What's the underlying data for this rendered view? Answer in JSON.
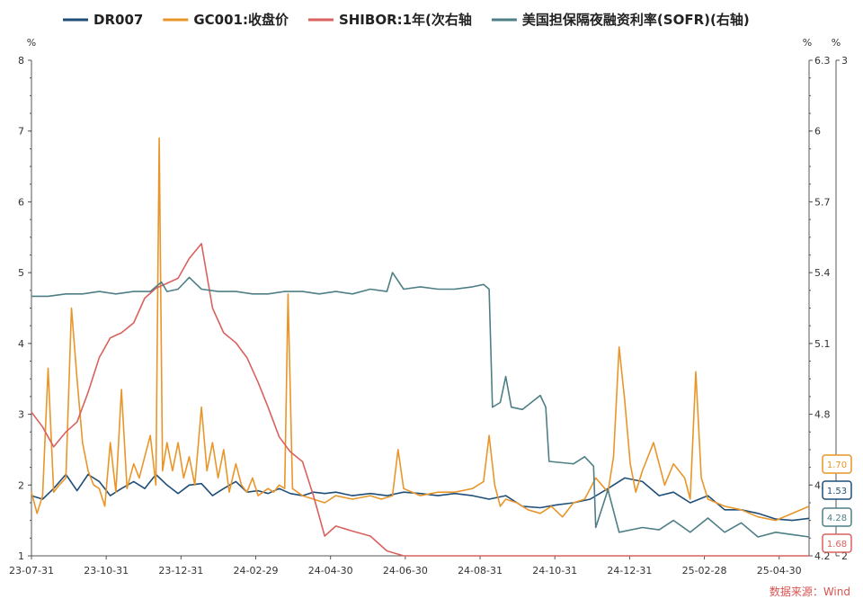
{
  "chart_data": {
    "type": "line",
    "title": "",
    "source_label": "数据来源：Wind",
    "legend_position": "top",
    "grid": false,
    "colors": {
      "DR007": "#1f4e79",
      "GC001": "#e8962a",
      "SHIBOR": "#d9625e",
      "SOFR": "#4e7f86"
    },
    "x_ticks": [
      "23-07-31",
      "23-10-31",
      "23-12-31",
      "24-02-29",
      "24-04-30",
      "24-06-30",
      "24-08-31",
      "24-10-31",
      "24-12-31",
      "25-02-28",
      "25-04-30"
    ],
    "left_axis": {
      "unit": "%",
      "min": 1,
      "max": 8,
      "ticks": [
        "1",
        "2",
        "3",
        "4",
        "5",
        "6",
        "7",
        "8"
      ]
    },
    "right_axis_1": {
      "unit": "%",
      "min": 4.2,
      "max": 6.3,
      "ticks": [
        "4.2",
        "4.5",
        "4.8",
        "5.1",
        "5.4",
        "5.7",
        "6",
        "6.3"
      ]
    },
    "right_axis_2": {
      "unit": "%",
      "min": 2,
      "max": 3,
      "ticks": [
        "2",
        "3"
      ]
    },
    "series": [
      {
        "name": "DR007",
        "key": "DR007",
        "axis": "left",
        "end_value": "1.53",
        "points": [
          [
            "2023-07-31",
            1.85
          ],
          [
            "2023-08-10",
            1.8
          ],
          [
            "2023-08-20",
            1.95
          ],
          [
            "2023-08-31",
            2.15
          ],
          [
            "2023-09-10",
            1.92
          ],
          [
            "2023-09-20",
            2.15
          ],
          [
            "2023-09-30",
            2.05
          ],
          [
            "2023-10-10",
            1.85
          ],
          [
            "2023-10-20",
            1.95
          ],
          [
            "2023-10-31",
            2.05
          ],
          [
            "2023-11-10",
            1.95
          ],
          [
            "2023-11-20",
            2.15
          ],
          [
            "2023-11-30",
            2.0
          ],
          [
            "2023-12-10",
            1.88
          ],
          [
            "2023-12-20",
            2.0
          ],
          [
            "2023-12-31",
            2.02
          ],
          [
            "2024-01-10",
            1.85
          ],
          [
            "2024-01-20",
            1.95
          ],
          [
            "2024-01-31",
            2.05
          ],
          [
            "2024-02-10",
            1.9
          ],
          [
            "2024-02-20",
            1.92
          ],
          [
            "2024-02-29",
            1.88
          ],
          [
            "2024-03-10",
            1.95
          ],
          [
            "2024-03-20",
            1.88
          ],
          [
            "2024-03-31",
            1.85
          ],
          [
            "2024-04-10",
            1.9
          ],
          [
            "2024-04-20",
            1.88
          ],
          [
            "2024-04-30",
            1.9
          ],
          [
            "2024-05-15",
            1.85
          ],
          [
            "2024-05-31",
            1.88
          ],
          [
            "2024-06-15",
            1.85
          ],
          [
            "2024-06-30",
            1.9
          ],
          [
            "2024-07-15",
            1.88
          ],
          [
            "2024-07-31",
            1.85
          ],
          [
            "2024-08-15",
            1.88
          ],
          [
            "2024-08-31",
            1.85
          ],
          [
            "2024-09-15",
            1.8
          ],
          [
            "2024-09-30",
            1.85
          ],
          [
            "2024-10-15",
            1.7
          ],
          [
            "2024-10-31",
            1.68
          ],
          [
            "2024-11-15",
            1.72
          ],
          [
            "2024-11-30",
            1.75
          ],
          [
            "2024-12-15",
            1.8
          ],
          [
            "2024-12-31",
            1.95
          ],
          [
            "2025-01-15",
            2.1
          ],
          [
            "2025-01-31",
            2.05
          ],
          [
            "2025-02-15",
            1.85
          ],
          [
            "2025-02-28",
            1.9
          ],
          [
            "2025-03-15",
            1.75
          ],
          [
            "2025-03-31",
            1.85
          ],
          [
            "2025-04-15",
            1.65
          ],
          [
            "2025-04-30",
            1.65
          ],
          [
            "2025-05-15",
            1.6
          ],
          [
            "2025-05-31",
            1.52
          ],
          [
            "2025-06-15",
            1.5
          ],
          [
            "2025-06-30",
            1.53
          ]
        ]
      },
      {
        "name": "GC001:收盘价",
        "key": "GC001",
        "axis": "left",
        "end_value": "1.70",
        "points": [
          [
            "2023-07-31",
            1.9
          ],
          [
            "2023-08-05",
            1.6
          ],
          [
            "2023-08-10",
            1.85
          ],
          [
            "2023-08-15",
            3.65
          ],
          [
            "2023-08-20",
            1.9
          ],
          [
            "2023-08-25",
            2.0
          ],
          [
            "2023-08-31",
            2.1
          ],
          [
            "2023-09-05",
            4.5
          ],
          [
            "2023-09-10",
            3.5
          ],
          [
            "2023-09-15",
            2.6
          ],
          [
            "2023-09-20",
            2.2
          ],
          [
            "2023-09-25",
            2.0
          ],
          [
            "2023-09-30",
            1.95
          ],
          [
            "2023-10-05",
            1.7
          ],
          [
            "2023-10-10",
            2.6
          ],
          [
            "2023-10-15",
            1.9
          ],
          [
            "2023-10-20",
            3.35
          ],
          [
            "2023-10-25",
            1.95
          ],
          [
            "2023-10-31",
            2.3
          ],
          [
            "2023-11-05",
            2.1
          ],
          [
            "2023-11-10",
            2.4
          ],
          [
            "2023-11-15",
            2.7
          ],
          [
            "2023-11-20",
            2.0
          ],
          [
            "2023-11-23",
            6.9
          ],
          [
            "2023-11-26",
            2.2
          ],
          [
            "2023-11-30",
            2.6
          ],
          [
            "2023-12-05",
            2.2
          ],
          [
            "2023-12-10",
            2.6
          ],
          [
            "2023-12-15",
            2.1
          ],
          [
            "2023-12-20",
            2.4
          ],
          [
            "2023-12-25",
            2.0
          ],
          [
            "2023-12-31",
            3.1
          ],
          [
            "2024-01-05",
            2.2
          ],
          [
            "2024-01-10",
            2.6
          ],
          [
            "2024-01-15",
            2.1
          ],
          [
            "2024-01-20",
            2.5
          ],
          [
            "2024-01-25",
            1.9
          ],
          [
            "2024-01-31",
            2.3
          ],
          [
            "2024-02-05",
            2.0
          ],
          [
            "2024-02-10",
            1.9
          ],
          [
            "2024-02-15",
            2.1
          ],
          [
            "2024-02-20",
            1.85
          ],
          [
            "2024-02-29",
            1.95
          ],
          [
            "2024-03-05",
            1.9
          ],
          [
            "2024-03-10",
            2.0
          ],
          [
            "2024-03-15",
            1.95
          ],
          [
            "2024-03-18",
            4.7
          ],
          [
            "2024-03-22",
            1.95
          ],
          [
            "2024-03-31",
            1.85
          ],
          [
            "2024-04-10",
            1.8
          ],
          [
            "2024-04-20",
            1.75
          ],
          [
            "2024-04-30",
            1.85
          ],
          [
            "2024-05-15",
            1.8
          ],
          [
            "2024-05-31",
            1.85
          ],
          [
            "2024-06-10",
            1.8
          ],
          [
            "2024-06-20",
            1.85
          ],
          [
            "2024-06-25",
            2.5
          ],
          [
            "2024-06-30",
            1.95
          ],
          [
            "2024-07-15",
            1.85
          ],
          [
            "2024-07-31",
            1.9
          ],
          [
            "2024-08-15",
            1.9
          ],
          [
            "2024-08-31",
            1.95
          ],
          [
            "2024-09-10",
            2.05
          ],
          [
            "2024-09-15",
            2.7
          ],
          [
            "2024-09-20",
            2.0
          ],
          [
            "2024-09-25",
            1.7
          ],
          [
            "2024-09-30",
            1.8
          ],
          [
            "2024-10-10",
            1.75
          ],
          [
            "2024-10-20",
            1.65
          ],
          [
            "2024-10-31",
            1.6
          ],
          [
            "2024-11-10",
            1.7
          ],
          [
            "2024-11-20",
            1.55
          ],
          [
            "2024-11-30",
            1.75
          ],
          [
            "2024-12-10",
            1.8
          ],
          [
            "2024-12-20",
            2.1
          ],
          [
            "2024-12-31",
            1.9
          ],
          [
            "2025-01-05",
            2.4
          ],
          [
            "2025-01-10",
            3.95
          ],
          [
            "2025-01-15",
            3.2
          ],
          [
            "2025-01-20",
            2.3
          ],
          [
            "2025-01-25",
            1.9
          ],
          [
            "2025-01-31",
            2.2
          ],
          [
            "2025-02-10",
            2.6
          ],
          [
            "2025-02-20",
            2.0
          ],
          [
            "2025-02-28",
            2.3
          ],
          [
            "2025-03-10",
            2.1
          ],
          [
            "2025-03-15",
            1.8
          ],
          [
            "2025-03-20",
            3.6
          ],
          [
            "2025-03-25",
            2.1
          ],
          [
            "2025-03-31",
            1.8
          ],
          [
            "2025-04-15",
            1.7
          ],
          [
            "2025-04-30",
            1.65
          ],
          [
            "2025-05-15",
            1.55
          ],
          [
            "2025-05-31",
            1.5
          ],
          [
            "2025-06-15",
            1.6
          ],
          [
            "2025-06-30",
            1.7
          ]
        ]
      },
      {
        "name": "SHIBOR:1年(次右轴",
        "key": "SHIBOR",
        "axis": "right2",
        "end_value": "1.68",
        "points": [
          [
            "2023-07-31",
            2.29
          ],
          [
            "2023-08-10",
            2.26
          ],
          [
            "2023-08-20",
            2.22
          ],
          [
            "2023-08-31",
            2.25
          ],
          [
            "2023-09-10",
            2.27
          ],
          [
            "2023-09-20",
            2.33
          ],
          [
            "2023-09-30",
            2.4
          ],
          [
            "2023-10-10",
            2.44
          ],
          [
            "2023-10-20",
            2.45
          ],
          [
            "2023-10-31",
            2.47
          ],
          [
            "2023-11-10",
            2.52
          ],
          [
            "2023-11-20",
            2.54
          ],
          [
            "2023-11-30",
            2.55
          ],
          [
            "2023-12-10",
            2.56
          ],
          [
            "2023-12-20",
            2.6
          ],
          [
            "2023-12-31",
            2.63
          ],
          [
            "2024-01-10",
            2.5
          ],
          [
            "2024-01-20",
            2.45
          ],
          [
            "2024-01-31",
            2.43
          ],
          [
            "2024-02-10",
            2.4
          ],
          [
            "2024-02-20",
            2.35
          ],
          [
            "2024-02-29",
            2.3
          ],
          [
            "2024-03-10",
            2.24
          ],
          [
            "2024-03-20",
            2.21
          ],
          [
            "2024-03-31",
            2.19
          ],
          [
            "2024-04-10",
            2.12
          ],
          [
            "2024-04-20",
            2.04
          ],
          [
            "2024-04-30",
            2.06
          ],
          [
            "2024-05-15",
            2.05
          ],
          [
            "2024-05-31",
            2.04
          ],
          [
            "2024-06-15",
            2.01
          ],
          [
            "2024-06-30",
            1.96
          ],
          [
            "2024-07-15",
            1.85
          ],
          [
            "2024-07-31",
            1.8
          ],
          [
            "2024-08-31",
            1.75
          ],
          [
            "2024-09-30",
            1.7
          ],
          [
            "2024-12-31",
            1.65
          ],
          [
            "2025-02-28",
            1.7
          ],
          [
            "2025-04-30",
            1.68
          ],
          [
            "2025-06-30",
            1.68
          ]
        ]
      },
      {
        "name": "美国担保隔夜融资利率(SOFR)(右轴)",
        "key": "SOFR",
        "axis": "right1",
        "end_value": "4.28",
        "points": [
          [
            "2023-07-31",
            5.3
          ],
          [
            "2023-08-15",
            5.3
          ],
          [
            "2023-08-31",
            5.31
          ],
          [
            "2023-09-15",
            5.31
          ],
          [
            "2023-09-30",
            5.32
          ],
          [
            "2023-10-15",
            5.31
          ],
          [
            "2023-10-31",
            5.32
          ],
          [
            "2023-11-15",
            5.32
          ],
          [
            "2023-11-25",
            5.36
          ],
          [
            "2023-11-30",
            5.32
          ],
          [
            "2023-12-10",
            5.33
          ],
          [
            "2023-12-20",
            5.38
          ],
          [
            "2023-12-31",
            5.33
          ],
          [
            "2024-01-15",
            5.32
          ],
          [
            "2024-01-31",
            5.32
          ],
          [
            "2024-02-15",
            5.31
          ],
          [
            "2024-02-29",
            5.31
          ],
          [
            "2024-03-15",
            5.32
          ],
          [
            "2024-03-31",
            5.32
          ],
          [
            "2024-04-15",
            5.31
          ],
          [
            "2024-04-30",
            5.32
          ],
          [
            "2024-05-15",
            5.31
          ],
          [
            "2024-05-31",
            5.33
          ],
          [
            "2024-06-15",
            5.32
          ],
          [
            "2024-06-20",
            5.4
          ],
          [
            "2024-06-30",
            5.33
          ],
          [
            "2024-07-15",
            5.34
          ],
          [
            "2024-07-31",
            5.33
          ],
          [
            "2024-08-15",
            5.33
          ],
          [
            "2024-08-31",
            5.34
          ],
          [
            "2024-09-10",
            5.35
          ],
          [
            "2024-09-15",
            5.33
          ],
          [
            "2024-09-18",
            4.83
          ],
          [
            "2024-09-25",
            4.85
          ],
          [
            "2024-09-30",
            4.96
          ],
          [
            "2024-10-05",
            4.83
          ],
          [
            "2024-10-15",
            4.82
          ],
          [
            "2024-10-31",
            4.88
          ],
          [
            "2024-11-05",
            4.83
          ],
          [
            "2024-11-08",
            4.6
          ],
          [
            "2024-11-30",
            4.59
          ],
          [
            "2024-12-10",
            4.62
          ],
          [
            "2024-12-18",
            4.58
          ],
          [
            "2024-12-20",
            4.32
          ],
          [
            "2024-12-31",
            4.48
          ],
          [
            "2025-01-10",
            4.3
          ],
          [
            "2025-01-31",
            4.32
          ],
          [
            "2025-02-15",
            4.31
          ],
          [
            "2025-02-28",
            4.35
          ],
          [
            "2025-03-15",
            4.3
          ],
          [
            "2025-03-31",
            4.36
          ],
          [
            "2025-04-15",
            4.3
          ],
          [
            "2025-04-30",
            4.34
          ],
          [
            "2025-05-15",
            4.28
          ],
          [
            "2025-05-31",
            4.3
          ],
          [
            "2025-06-15",
            4.29
          ],
          [
            "2025-06-30",
            4.28
          ]
        ]
      }
    ]
  }
}
